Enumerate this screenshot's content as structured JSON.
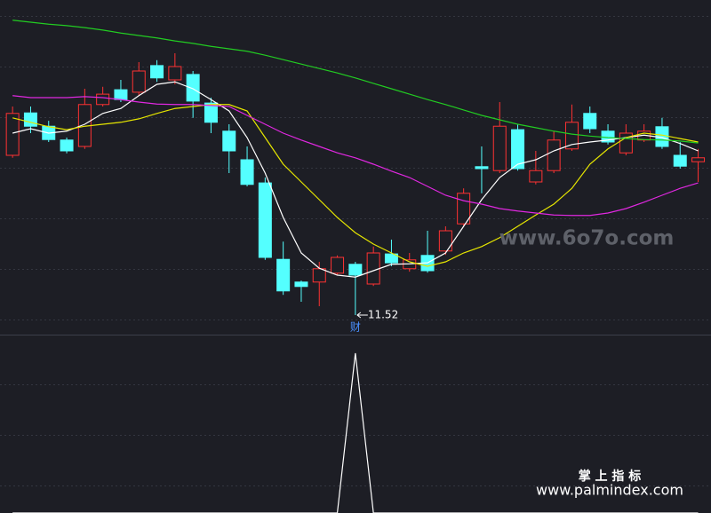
{
  "chart_data": [
    {
      "type": "candlestick",
      "ylim": [
        11.16,
        17.91
      ],
      "grid": true,
      "up_color": "#ff3232",
      "down_color": "#54ffff",
      "open": [
        14.76,
        15.62,
        15.35,
        15.07,
        14.94,
        15.79,
        16.09,
        16.04,
        16.58,
        16.29,
        16.4,
        15.82,
        15.25,
        14.67,
        14.2,
        12.65,
        12.19,
        12.19,
        12.37,
        12.55,
        12.15,
        12.76,
        12.46,
        12.73,
        12.82,
        13.37,
        14.53,
        14.45,
        15.28,
        14.22,
        14.45,
        14.89,
        15.61,
        15.25,
        14.81,
        15.07,
        15.34,
        14.76,
        14.63
      ],
      "high": [
        15.75,
        15.75,
        15.46,
        15.12,
        16.11,
        16.15,
        16.29,
        16.65,
        16.69,
        16.83,
        16.47,
        15.93,
        15.39,
        14.94,
        14.31,
        13.01,
        12.22,
        12.6,
        12.73,
        12.6,
        12.91,
        13.05,
        12.78,
        13.23,
        13.32,
        14.09,
        14.94,
        15.84,
        15.39,
        14.85,
        15.25,
        15.79,
        15.75,
        15.39,
        15.39,
        15.39,
        15.52,
        15.03,
        14.89
      ],
      "low": [
        14.71,
        15.21,
        15.03,
        14.8,
        14.89,
        15.75,
        15.84,
        15.97,
        16.25,
        16.2,
        15.52,
        15.21,
        14.4,
        14.13,
        12.64,
        11.93,
        11.79,
        11.7,
        12.33,
        11.52,
        12.11,
        12.51,
        12.4,
        12.38,
        12.74,
        13.32,
        13.99,
        14.4,
        14.45,
        14.17,
        14.4,
        14.85,
        15.21,
        14.98,
        14.76,
        15.03,
        14.89,
        14.49,
        14.22
      ],
      "close": [
        15.61,
        15.35,
        15.08,
        14.85,
        15.79,
        16.0,
        15.89,
        16.47,
        16.33,
        16.56,
        15.86,
        15.43,
        14.85,
        14.17,
        12.69,
        12.01,
        12.1,
        12.46,
        12.69,
        12.33,
        12.78,
        12.58,
        12.64,
        12.42,
        13.23,
        13.99,
        14.49,
        15.35,
        14.49,
        14.45,
        15.07,
        15.43,
        15.3,
        15.03,
        15.21,
        15.25,
        14.94,
        14.54,
        14.71
      ],
      "series": [
        {
          "color": "#ffffff",
          "values": [
            15.21,
            15.3,
            15.21,
            15.25,
            15.39,
            15.61,
            15.71,
            15.97,
            16.2,
            16.25,
            16.11,
            15.89,
            15.66,
            15.12,
            14.4,
            13.5,
            12.78,
            12.47,
            12.33,
            12.29,
            12.42,
            12.55,
            12.56,
            12.58,
            12.78,
            13.32,
            13.86,
            14.31,
            14.58,
            14.67,
            14.85,
            14.98,
            15.03,
            15.07,
            15.12,
            15.17,
            15.12,
            15.0,
            14.85
          ]
        },
        {
          "color": "#e6e600",
          "values": [
            15.52,
            15.43,
            15.34,
            15.28,
            15.35,
            15.39,
            15.43,
            15.5,
            15.61,
            15.71,
            15.75,
            15.79,
            15.79,
            15.66,
            15.12,
            14.58,
            14.22,
            13.86,
            13.5,
            13.19,
            12.96,
            12.78,
            12.6,
            12.51,
            12.6,
            12.78,
            12.91,
            13.09,
            13.32,
            13.55,
            13.77,
            14.09,
            14.58,
            14.89,
            15.12,
            15.21,
            15.17,
            15.1,
            15.03
          ]
        },
        {
          "color": "#e028e0",
          "values": [
            15.97,
            15.93,
            15.93,
            15.93,
            15.95,
            15.93,
            15.89,
            15.84,
            15.8,
            15.79,
            15.79,
            15.77,
            15.75,
            15.57,
            15.39,
            15.21,
            15.07,
            14.94,
            14.81,
            14.71,
            14.58,
            14.44,
            14.31,
            14.13,
            13.95,
            13.84,
            13.77,
            13.68,
            13.63,
            13.59,
            13.55,
            13.54,
            13.54,
            13.59,
            13.68,
            13.81,
            13.95,
            14.09,
            14.2
          ]
        },
        {
          "color": "#22cc22",
          "values": [
            17.5,
            17.46,
            17.42,
            17.39,
            17.35,
            17.3,
            17.24,
            17.19,
            17.14,
            17.08,
            17.03,
            16.97,
            16.92,
            16.87,
            16.79,
            16.7,
            16.61,
            16.52,
            16.43,
            16.33,
            16.22,
            16.11,
            16.0,
            15.89,
            15.79,
            15.68,
            15.57,
            15.48,
            15.39,
            15.32,
            15.25,
            15.19,
            15.15,
            15.12,
            15.1,
            15.08,
            15.07,
            15.05,
            15.01
          ]
        }
      ],
      "annotation": {
        "value": 11.52,
        "label": "11.52",
        "marker": "财"
      },
      "watermark": "www.6o7o.com"
    },
    {
      "type": "line",
      "ylim": [
        0,
        1.1
      ],
      "grid": true,
      "series": [
        {
          "color": "#ffffff",
          "values": [
            0,
            0,
            0,
            0,
            0,
            0,
            0,
            0,
            0,
            0,
            0,
            0,
            0,
            0,
            0,
            0,
            0,
            0,
            0,
            1,
            0,
            0,
            0,
            0,
            0,
            0,
            0,
            0,
            0,
            0,
            0,
            0,
            0,
            0,
            0,
            0,
            0,
            0,
            0
          ]
        }
      ],
      "watermark": [
        "掌 上 指 标",
        "www.palmindex.com"
      ]
    }
  ]
}
